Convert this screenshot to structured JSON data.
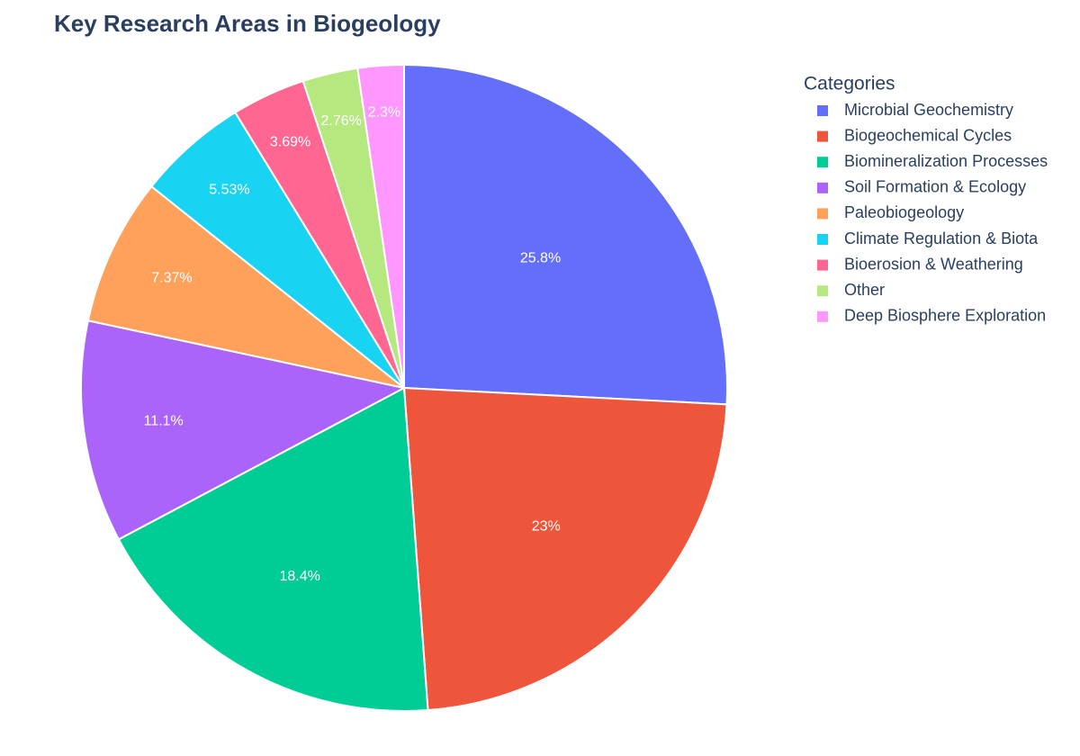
{
  "chart_data": {
    "type": "pie",
    "title": "Key Research Areas in Biogeology",
    "legend_title": "Categories",
    "categories": [
      "Microbial Geochemistry",
      "Biogeochemical Cycles",
      "Biomineralization Processes",
      "Soil Formation & Ecology",
      "Paleobiogeology",
      "Climate Regulation & Biota",
      "Bioerosion & Weathering",
      "Other",
      "Deep Biosphere Exploration"
    ],
    "values": [
      25.8,
      23,
      18.4,
      11.1,
      7.37,
      5.53,
      3.69,
      2.76,
      2.3
    ],
    "value_labels": [
      "25.8%",
      "23%",
      "18.4%",
      "11.1%",
      "7.37%",
      "5.53%",
      "3.69%",
      "2.76%",
      "2.3%"
    ],
    "colors": [
      "#636efa",
      "#ef553b",
      "#00cc96",
      "#ab63fa",
      "#ffa15a",
      "#19d3f3",
      "#ff6692",
      "#b6e880",
      "#ff97ff"
    ],
    "legend": "right"
  }
}
